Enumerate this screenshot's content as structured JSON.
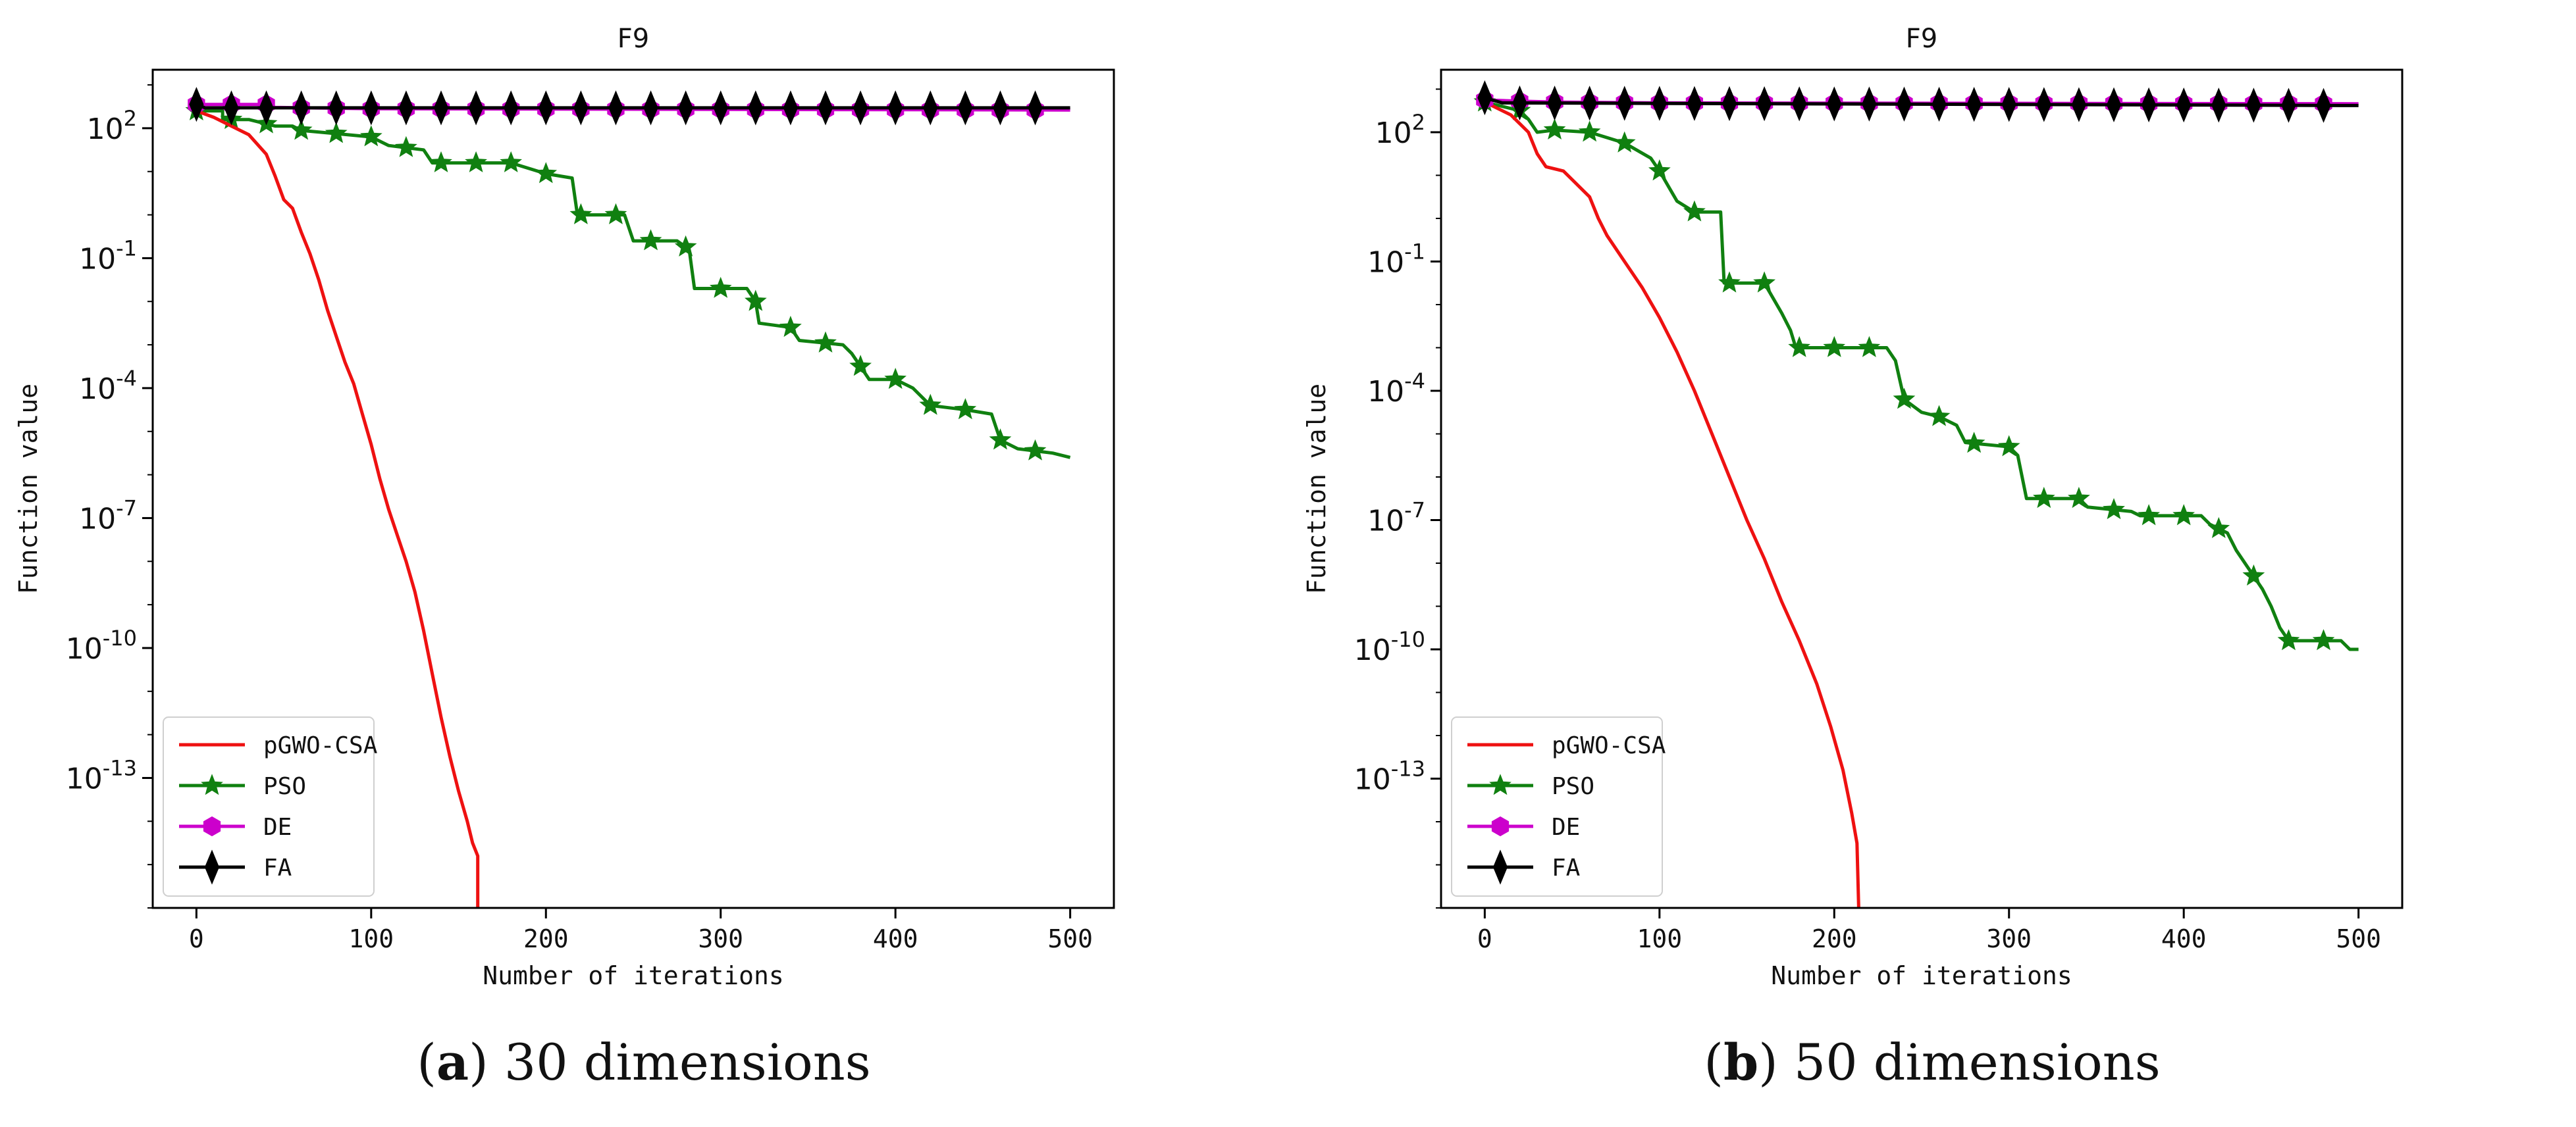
{
  "panels": [
    {
      "caption_letter": "a",
      "caption_text": ") 30 dimensions",
      "chart_data": {
        "type": "line",
        "title": "F9",
        "xlabel": "Number of iterations",
        "ylabel": "Function value",
        "yscale": "log",
        "xlim": [
          -25,
          525
        ],
        "ylog_range": [
          -16,
          3.35
        ],
        "xticks": [
          0,
          100,
          200,
          300,
          400,
          500
        ],
        "ytick_exponents": [
          2,
          -1,
          -4,
          -7,
          -10,
          -13
        ],
        "ytick_labels": [
          "10^2",
          "10^-1",
          "10^-4",
          "10^-7",
          "10^-10",
          "10^-13"
        ],
        "legend_location": "lower-left",
        "series": [
          {
            "name": "pGWO-CSA",
            "color": "#ee1111",
            "marker": "none",
            "points": [
              [
                0,
                2.4
              ],
              [
                10,
                2.25
              ],
              [
                20,
                2.05
              ],
              [
                30,
                1.85
              ],
              [
                40,
                1.4
              ],
              [
                45,
                0.9
              ],
              [
                50,
                0.35
              ],
              [
                55,
                0.15
              ],
              [
                60,
                -0.4
              ],
              [
                65,
                -0.9
              ],
              [
                70,
                -1.5
              ],
              [
                75,
                -2.2
              ],
              [
                80,
                -2.8
              ],
              [
                85,
                -3.4
              ],
              [
                90,
                -3.9
              ],
              [
                95,
                -4.6
              ],
              [
                100,
                -5.3
              ],
              [
                105,
                -6.1
              ],
              [
                110,
                -6.8
              ],
              [
                115,
                -7.4
              ],
              [
                120,
                -8.0
              ],
              [
                125,
                -8.7
              ],
              [
                130,
                -9.6
              ],
              [
                135,
                -10.6
              ],
              [
                140,
                -11.6
              ],
              [
                145,
                -12.5
              ],
              [
                150,
                -13.3
              ],
              [
                155,
                -14.0
              ],
              [
                158,
                -14.5
              ],
              [
                161,
                -14.8
              ],
              [
                161,
                -16
              ]
            ]
          },
          {
            "name": "PSO",
            "color": "#108010",
            "marker": "star",
            "points": [
              [
                0,
                2.4
              ],
              [
                15,
                2.4
              ],
              [
                15,
                2.2
              ],
              [
                30,
                2.2
              ],
              [
                45,
                2.05
              ],
              [
                55,
                2.05
              ],
              [
                60,
                1.95
              ],
              [
                100,
                1.8
              ],
              [
                110,
                1.6
              ],
              [
                130,
                1.5
              ],
              [
                135,
                1.2
              ],
              [
                180,
                1.2
              ],
              [
                200,
                0.95
              ],
              [
                215,
                0.85
              ],
              [
                218,
                0.0
              ],
              [
                245,
                0.0
              ],
              [
                250,
                -0.6
              ],
              [
                275,
                -0.6
              ],
              [
                282,
                -0.8
              ],
              [
                285,
                -1.7
              ],
              [
                315,
                -1.7
              ],
              [
                320,
                -2.0
              ],
              [
                322,
                -2.5
              ],
              [
                340,
                -2.6
              ],
              [
                345,
                -2.9
              ],
              [
                370,
                -3.0
              ],
              [
                375,
                -3.2
              ],
              [
                380,
                -3.5
              ],
              [
                385,
                -3.8
              ],
              [
                400,
                -3.8
              ],
              [
                410,
                -4.0
              ],
              [
                420,
                -4.4
              ],
              [
                440,
                -4.5
              ],
              [
                455,
                -4.6
              ],
              [
                460,
                -5.2
              ],
              [
                470,
                -5.4
              ],
              [
                490,
                -5.5
              ],
              [
                500,
                -5.6
              ]
            ],
            "marker_x": [
              0,
              20,
              40,
              60,
              80,
              100,
              120,
              140,
              160,
              180,
              200,
              220,
              240,
              260,
              280,
              300,
              320,
              340,
              360,
              380,
              400,
              420,
              440,
              460,
              480
            ]
          },
          {
            "name": "DE",
            "color": "#cc00cc",
            "marker": "hexagon",
            "points": [
              [
                0,
                2.55
              ],
              [
                40,
                2.55
              ],
              [
                45,
                2.48
              ],
              [
                100,
                2.45
              ],
              [
                500,
                2.42
              ]
            ],
            "marker_x": [
              0,
              20,
              40,
              60,
              80,
              100,
              120,
              140,
              160,
              180,
              200,
              220,
              240,
              260,
              280,
              300,
              320,
              340,
              360,
              380,
              400,
              420,
              440,
              460,
              480
            ]
          },
          {
            "name": "FA",
            "color": "#000000",
            "marker": "diamond",
            "points": [
              [
                0,
                2.55
              ],
              [
                5,
                2.47
              ],
              [
                500,
                2.47
              ]
            ],
            "marker_x": [
              0,
              20,
              40,
              60,
              80,
              100,
              120,
              140,
              160,
              180,
              200,
              220,
              240,
              260,
              280,
              300,
              320,
              340,
              360,
              380,
              400,
              420,
              440,
              460,
              480
            ]
          }
        ]
      }
    },
    {
      "caption_letter": "b",
      "caption_text": ") 50 dimensions",
      "chart_data": {
        "type": "line",
        "title": "F9",
        "xlabel": "Number of iterations",
        "ylabel": "Function value",
        "yscale": "log",
        "xlim": [
          -25,
          525
        ],
        "ylog_range": [
          -16,
          3.45
        ],
        "xticks": [
          0,
          100,
          200,
          300,
          400,
          500
        ],
        "ytick_exponents": [
          2,
          -1,
          -4,
          -7,
          -10,
          -13
        ],
        "ytick_labels": [
          "10^2",
          "10^-1",
          "10^-4",
          "10^-7",
          "10^-10",
          "10^-13"
        ],
        "legend_location": "lower-left",
        "series": [
          {
            "name": "pGWO-CSA",
            "color": "#ee1111",
            "marker": "none",
            "points": [
              [
                0,
                2.7
              ],
              [
                15,
                2.4
              ],
              [
                25,
                2.0
              ],
              [
                30,
                1.5
              ],
              [
                35,
                1.2
              ],
              [
                45,
                1.1
              ],
              [
                50,
                0.9
              ],
              [
                60,
                0.5
              ],
              [
                65,
                0.0
              ],
              [
                70,
                -0.4
              ],
              [
                80,
                -1.0
              ],
              [
                90,
                -1.6
              ],
              [
                100,
                -2.3
              ],
              [
                110,
                -3.1
              ],
              [
                120,
                -4.0
              ],
              [
                130,
                -5.0
              ],
              [
                140,
                -6.0
              ],
              [
                150,
                -7.0
              ],
              [
                160,
                -7.9
              ],
              [
                170,
                -8.9
              ],
              [
                180,
                -9.8
              ],
              [
                190,
                -10.8
              ],
              [
                198,
                -11.8
              ],
              [
                205,
                -12.8
              ],
              [
                210,
                -13.8
              ],
              [
                213,
                -14.5
              ],
              [
                214,
                -16
              ]
            ]
          },
          {
            "name": "PSO",
            "color": "#108010",
            "marker": "star",
            "points": [
              [
                0,
                2.7
              ],
              [
                20,
                2.5
              ],
              [
                25,
                2.3
              ],
              [
                30,
                2.0
              ],
              [
                40,
                2.05
              ],
              [
                60,
                2.0
              ],
              [
                80,
                1.75
              ],
              [
                95,
                1.4
              ],
              [
                100,
                1.1
              ],
              [
                110,
                0.4
              ],
              [
                120,
                0.15
              ],
              [
                135,
                0.15
              ],
              [
                137,
                -1.5
              ],
              [
                160,
                -1.5
              ],
              [
                170,
                -2.2
              ],
              [
                175,
                -2.6
              ],
              [
                178,
                -3.0
              ],
              [
                230,
                -3.0
              ],
              [
                235,
                -3.3
              ],
              [
                240,
                -4.2
              ],
              [
                250,
                -4.5
              ],
              [
                260,
                -4.6
              ],
              [
                270,
                -4.8
              ],
              [
                275,
                -5.2
              ],
              [
                300,
                -5.3
              ],
              [
                305,
                -5.5
              ],
              [
                310,
                -6.5
              ],
              [
                340,
                -6.5
              ],
              [
                345,
                -6.7
              ],
              [
                370,
                -6.8
              ],
              [
                375,
                -6.9
              ],
              [
                410,
                -6.9
              ],
              [
                415,
                -7.1
              ],
              [
                425,
                -7.3
              ],
              [
                430,
                -7.7
              ],
              [
                440,
                -8.3
              ],
              [
                445,
                -8.6
              ],
              [
                450,
                -9.0
              ],
              [
                455,
                -9.5
              ],
              [
                460,
                -9.8
              ],
              [
                490,
                -9.8
              ],
              [
                495,
                -10.0
              ],
              [
                500,
                -10.0
              ]
            ],
            "marker_x": [
              0,
              20,
              40,
              60,
              80,
              100,
              120,
              140,
              160,
              180,
              200,
              220,
              240,
              260,
              280,
              300,
              320,
              340,
              360,
              380,
              400,
              420,
              440,
              460,
              480
            ]
          },
          {
            "name": "DE",
            "color": "#cc00cc",
            "marker": "hexagon",
            "points": [
              [
                0,
                2.75
              ],
              [
                20,
                2.72
              ],
              [
                40,
                2.7
              ],
              [
                100,
                2.68
              ],
              [
                500,
                2.66
              ]
            ],
            "marker_x": [
              0,
              20,
              40,
              60,
              80,
              100,
              120,
              140,
              160,
              180,
              200,
              220,
              240,
              260,
              280,
              300,
              320,
              340,
              360,
              380,
              400,
              420,
              440,
              460,
              480
            ]
          },
          {
            "name": "FA",
            "color": "#000000",
            "marker": "diamond",
            "points": [
              [
                0,
                2.8
              ],
              [
                10,
                2.68
              ],
              [
                500,
                2.62
              ]
            ],
            "marker_x": [
              0,
              20,
              40,
              60,
              80,
              100,
              120,
              140,
              160,
              180,
              200,
              220,
              240,
              260,
              280,
              300,
              320,
              340,
              360,
              380,
              400,
              420,
              440,
              460,
              480
            ]
          }
        ]
      }
    }
  ]
}
